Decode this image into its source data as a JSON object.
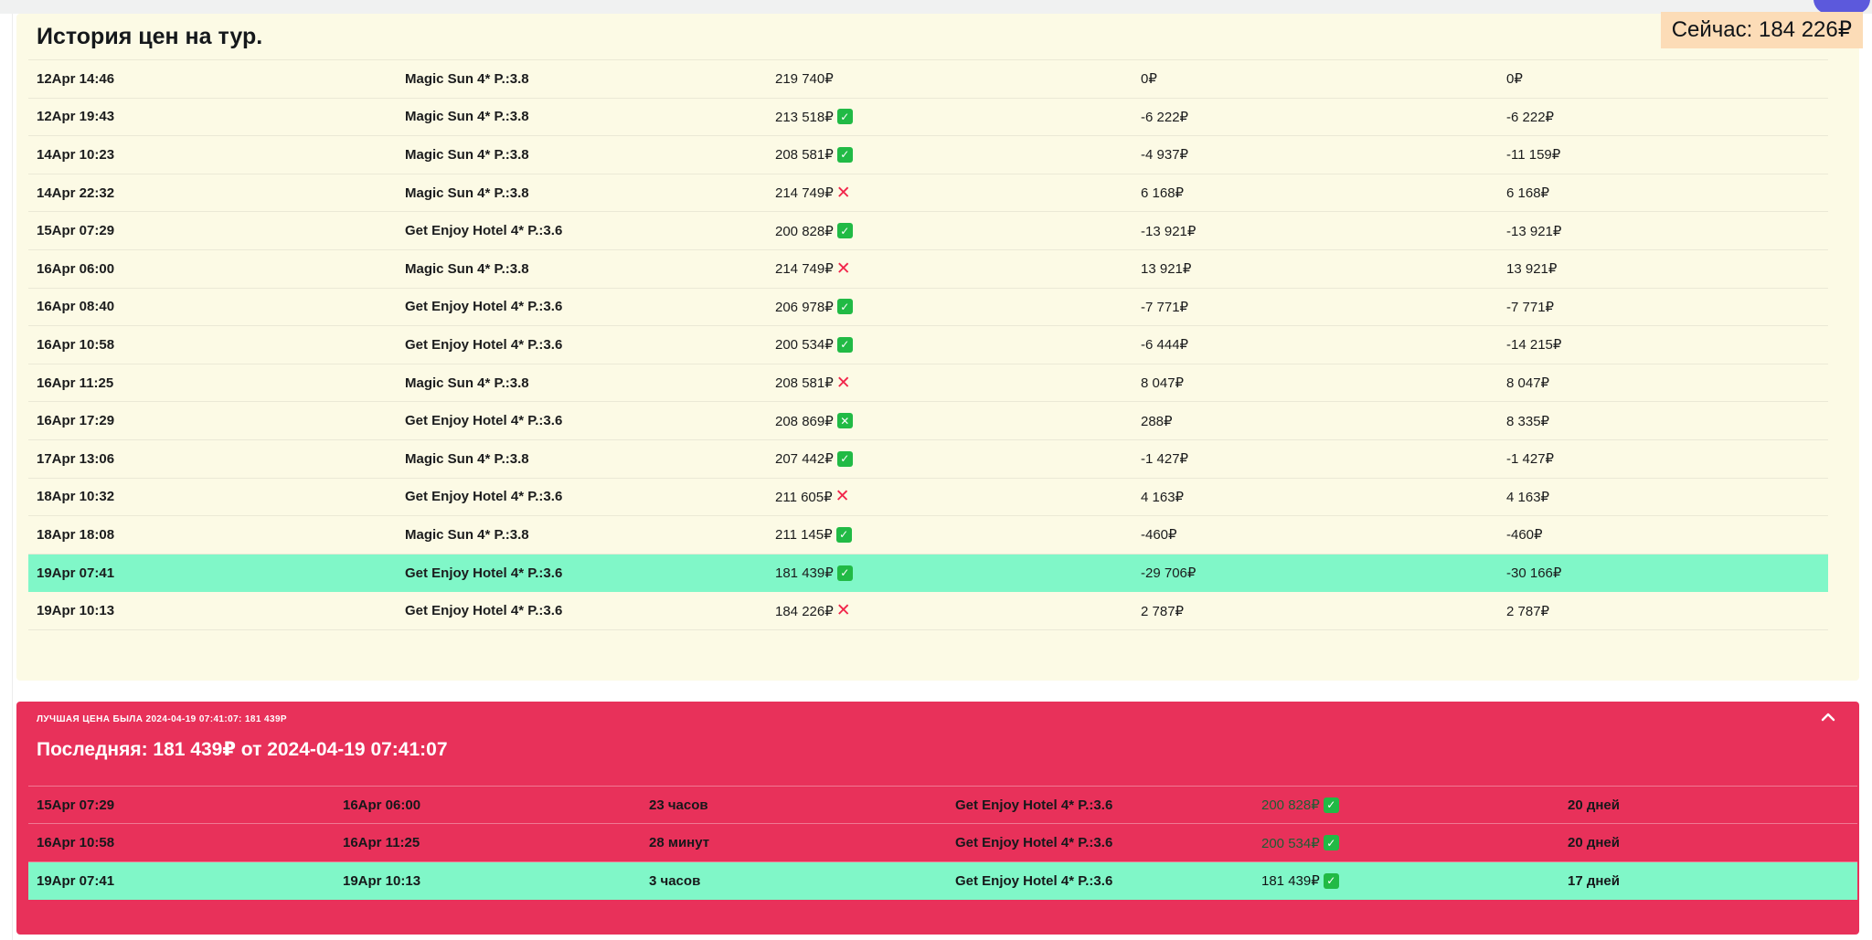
{
  "history": {
    "title": "История цен на тур.",
    "now_badge": "Сейчас: 184 226₽",
    "rows": [
      {
        "time": "12Apr 14:46",
        "hotel": "Magic Sun 4* P.:3.8",
        "price": "219 740₽",
        "icon": "none",
        "diff": "0₽",
        "total": "0₽",
        "highlight": false
      },
      {
        "time": "12Apr 19:43",
        "hotel": "Magic Sun 4* P.:3.8",
        "price": "213 518₽",
        "icon": "check",
        "diff": "-6 222₽",
        "total": "-6 222₽",
        "highlight": false
      },
      {
        "time": "14Apr 10:23",
        "hotel": "Magic Sun 4* P.:3.8",
        "price": "208 581₽",
        "icon": "check",
        "diff": "-4 937₽",
        "total": "-11 159₽",
        "highlight": false
      },
      {
        "time": "14Apr 22:32",
        "hotel": "Magic Sun 4* P.:3.8",
        "price": "214 749₽",
        "icon": "cross",
        "diff": "6 168₽",
        "total": "6 168₽",
        "highlight": false
      },
      {
        "time": "15Apr 07:29",
        "hotel": "Get Enjoy Hotel 4* P.:3.6",
        "price": "200 828₽",
        "icon": "check",
        "diff": "-13 921₽",
        "total": "-13 921₽",
        "highlight": false
      },
      {
        "time": "16Apr 06:00",
        "hotel": "Magic Sun 4* P.:3.8",
        "price": "214 749₽",
        "icon": "cross",
        "diff": "13 921₽",
        "total": "13 921₽",
        "highlight": false
      },
      {
        "time": "16Apr 08:40",
        "hotel": "Get Enjoy Hotel 4* P.:3.6",
        "price": "206 978₽",
        "icon": "check",
        "diff": "-7 771₽",
        "total": "-7 771₽",
        "highlight": false
      },
      {
        "time": "16Apr 10:58",
        "hotel": "Get Enjoy Hotel 4* P.:3.6",
        "price": "200 534₽",
        "icon": "check",
        "diff": "-6 444₽",
        "total": "-14 215₽",
        "highlight": false
      },
      {
        "time": "16Apr 11:25",
        "hotel": "Magic Sun 4* P.:3.8",
        "price": "208 581₽",
        "icon": "cross",
        "diff": "8 047₽",
        "total": "8 047₽",
        "highlight": false
      },
      {
        "time": "16Apr 17:29",
        "hotel": "Get Enjoy Hotel 4* P.:3.6",
        "price": "208 869₽",
        "icon": "boxed_cross",
        "diff": "288₽",
        "total": "8 335₽",
        "highlight": false
      },
      {
        "time": "17Apr 13:06",
        "hotel": "Magic Sun 4* P.:3.8",
        "price": "207 442₽",
        "icon": "check",
        "diff": "-1 427₽",
        "total": "-1 427₽",
        "highlight": false
      },
      {
        "time": "18Apr 10:32",
        "hotel": "Get Enjoy Hotel 4* P.:3.6",
        "price": "211 605₽",
        "icon": "cross",
        "diff": "4 163₽",
        "total": "4 163₽",
        "highlight": false
      },
      {
        "time": "18Apr 18:08",
        "hotel": "Magic Sun 4* P.:3.8",
        "price": "211 145₽",
        "icon": "check",
        "diff": "-460₽",
        "total": "-460₽",
        "highlight": false
      },
      {
        "time": "19Apr 07:41",
        "hotel": "Get Enjoy Hotel 4* P.:3.6",
        "price": "181 439₽",
        "icon": "check",
        "diff": "-29 706₽",
        "total": "-30 166₽",
        "highlight": true
      },
      {
        "time": "19Apr 10:13",
        "hotel": "Get Enjoy Hotel 4* P.:3.6",
        "price": "184 226₽",
        "icon": "cross",
        "diff": "2 787₽",
        "total": "2 787₽",
        "highlight": false
      }
    ]
  },
  "best": {
    "eyebrow": "ЛУЧШАЯ ЦЕНА БЫЛА 2024-04-19 07:41:07: 181 439Р",
    "heading": "Последняя: 181 439₽ от 2024-04-19 07:41:07",
    "rows": [
      {
        "from": "15Apr 07:29",
        "to": "16Apr 06:00",
        "duration": "23 часов",
        "hotel": "Get Enjoy Hotel 4* P.:3.6",
        "price": "200 828₽",
        "icon": "check",
        "days": "20 дней",
        "highlight": false
      },
      {
        "from": "16Apr 10:58",
        "to": "16Apr 11:25",
        "duration": "28 минут",
        "hotel": "Get Enjoy Hotel 4* P.:3.6",
        "price": "200 534₽",
        "icon": "check",
        "days": "20 дней",
        "highlight": false
      },
      {
        "from": "19Apr 07:41",
        "to": "19Apr 10:13",
        "duration": "3 часов",
        "hotel": "Get Enjoy Hotel 4* P.:3.6",
        "price": "181 439₽",
        "icon": "check",
        "days": "17 дней",
        "highlight": true
      }
    ]
  },
  "icons": {
    "check": "✓",
    "cross": "✕",
    "boxed_cross": "✕",
    "chevron_up": "chevron-up"
  },
  "colors": {
    "history_panel_bg": "#fcfae5",
    "best_panel_bg": "#e8315a",
    "highlight_row_bg": "#80f7c8",
    "now_badge_bg": "#fcdcb7",
    "check_green": "#21ba45",
    "cross_red": "#f1254a"
  }
}
